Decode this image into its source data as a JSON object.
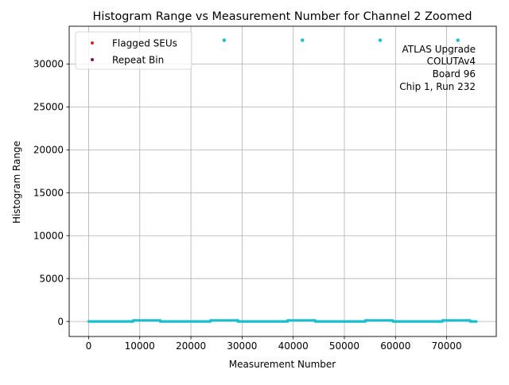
{
  "chart_data": {
    "type": "scatter",
    "title": "Histogram Range vs Measurement Number for Channel 2 Zoomed",
    "xlabel": "Measurement Number",
    "ylabel": "Histogram Range",
    "xlim": [
      -3800,
      79700
    ],
    "ylim": [
      -1750,
      34400
    ],
    "x_ticks": [
      0,
      10000,
      20000,
      30000,
      40000,
      50000,
      60000,
      70000
    ],
    "y_ticks": [
      0,
      5000,
      10000,
      15000,
      20000,
      25000,
      30000
    ],
    "grid": true,
    "legend_position": "top-left",
    "legend": [
      {
        "label": "Flagged SEUs",
        "color": "#d62728"
      },
      {
        "label": "Repeat Bin",
        "color": "#7f0f5f"
      }
    ],
    "annotation_lines": [
      "ATLAS Upgrade",
      "COLUTAv4",
      "Board 96",
      "Chip 1, Run 232"
    ],
    "series": [
      {
        "color": "#17becf",
        "baseline_segments": [
          {
            "x_start": 0,
            "x_end": 8700,
            "y": 0
          },
          {
            "x_start": 8700,
            "x_end": 14000,
            "y": 120
          },
          {
            "x_start": 14000,
            "x_end": 23800,
            "y": 0
          },
          {
            "x_start": 23800,
            "x_end": 29200,
            "y": 120
          },
          {
            "x_start": 29200,
            "x_end": 38900,
            "y": 0
          },
          {
            "x_start": 38900,
            "x_end": 44300,
            "y": 120
          },
          {
            "x_start": 44300,
            "x_end": 54100,
            "y": 0
          },
          {
            "x_start": 54100,
            "x_end": 59500,
            "y": 120
          },
          {
            "x_start": 59500,
            "x_end": 69200,
            "y": 0
          },
          {
            "x_start": 69200,
            "x_end": 74600,
            "y": 120
          },
          {
            "x_start": 74600,
            "x_end": 75800,
            "y": 0
          }
        ],
        "outliers": [
          {
            "x": 26500,
            "y": 32767
          },
          {
            "x": 41800,
            "y": 32767
          },
          {
            "x": 57000,
            "y": 32767
          },
          {
            "x": 72200,
            "y": 32767
          }
        ]
      }
    ]
  }
}
